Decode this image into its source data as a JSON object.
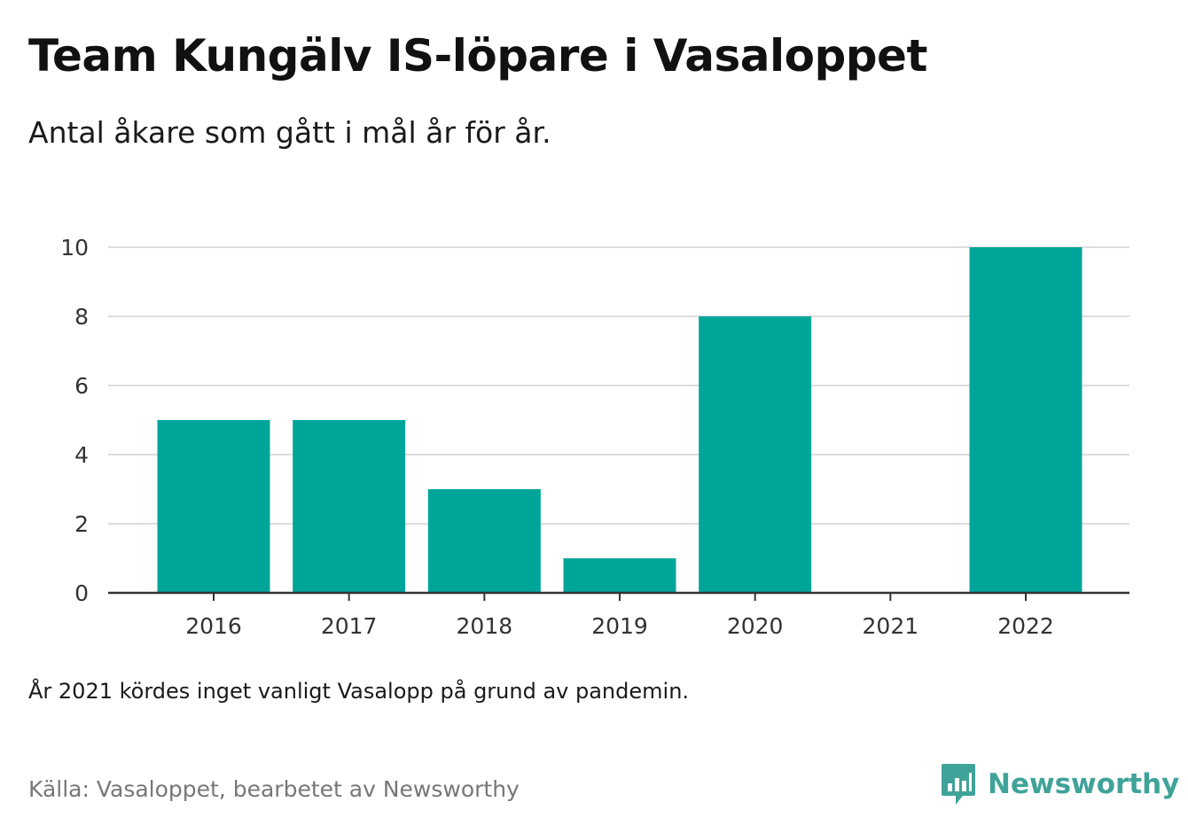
{
  "title": "Team Kungälv IS-löpare i Vasaloppet",
  "subtitle": "Antal åkare som gått i mål år för år.",
  "note": "År 2021 kördes inget vanligt Vasalopp på grund av pandemin.",
  "source": "Källa: Vasaloppet, bearbetet av Newsworthy",
  "brand": {
    "name": "Newsworthy",
    "icon": "newsworthy-logo-icon",
    "color": "#3fa39a"
  },
  "colors": {
    "bar": "#00a59a",
    "grid": "#dddddd",
    "axis": "#333333",
    "tick_text": "#333333"
  },
  "chart_data": {
    "type": "bar",
    "title": "Team Kungälv IS-löpare i Vasaloppet",
    "subtitle": "Antal åkare som gått i mål år för år.",
    "xlabel": "",
    "ylabel": "",
    "categories": [
      "2016",
      "2017",
      "2018",
      "2019",
      "2020",
      "2021",
      "2022"
    ],
    "values": [
      5,
      5,
      3,
      1,
      8,
      0,
      10
    ],
    "ylim": [
      0,
      10
    ],
    "yticks": [
      0,
      2,
      4,
      6,
      8,
      10
    ],
    "grid": true,
    "legend": "none"
  }
}
